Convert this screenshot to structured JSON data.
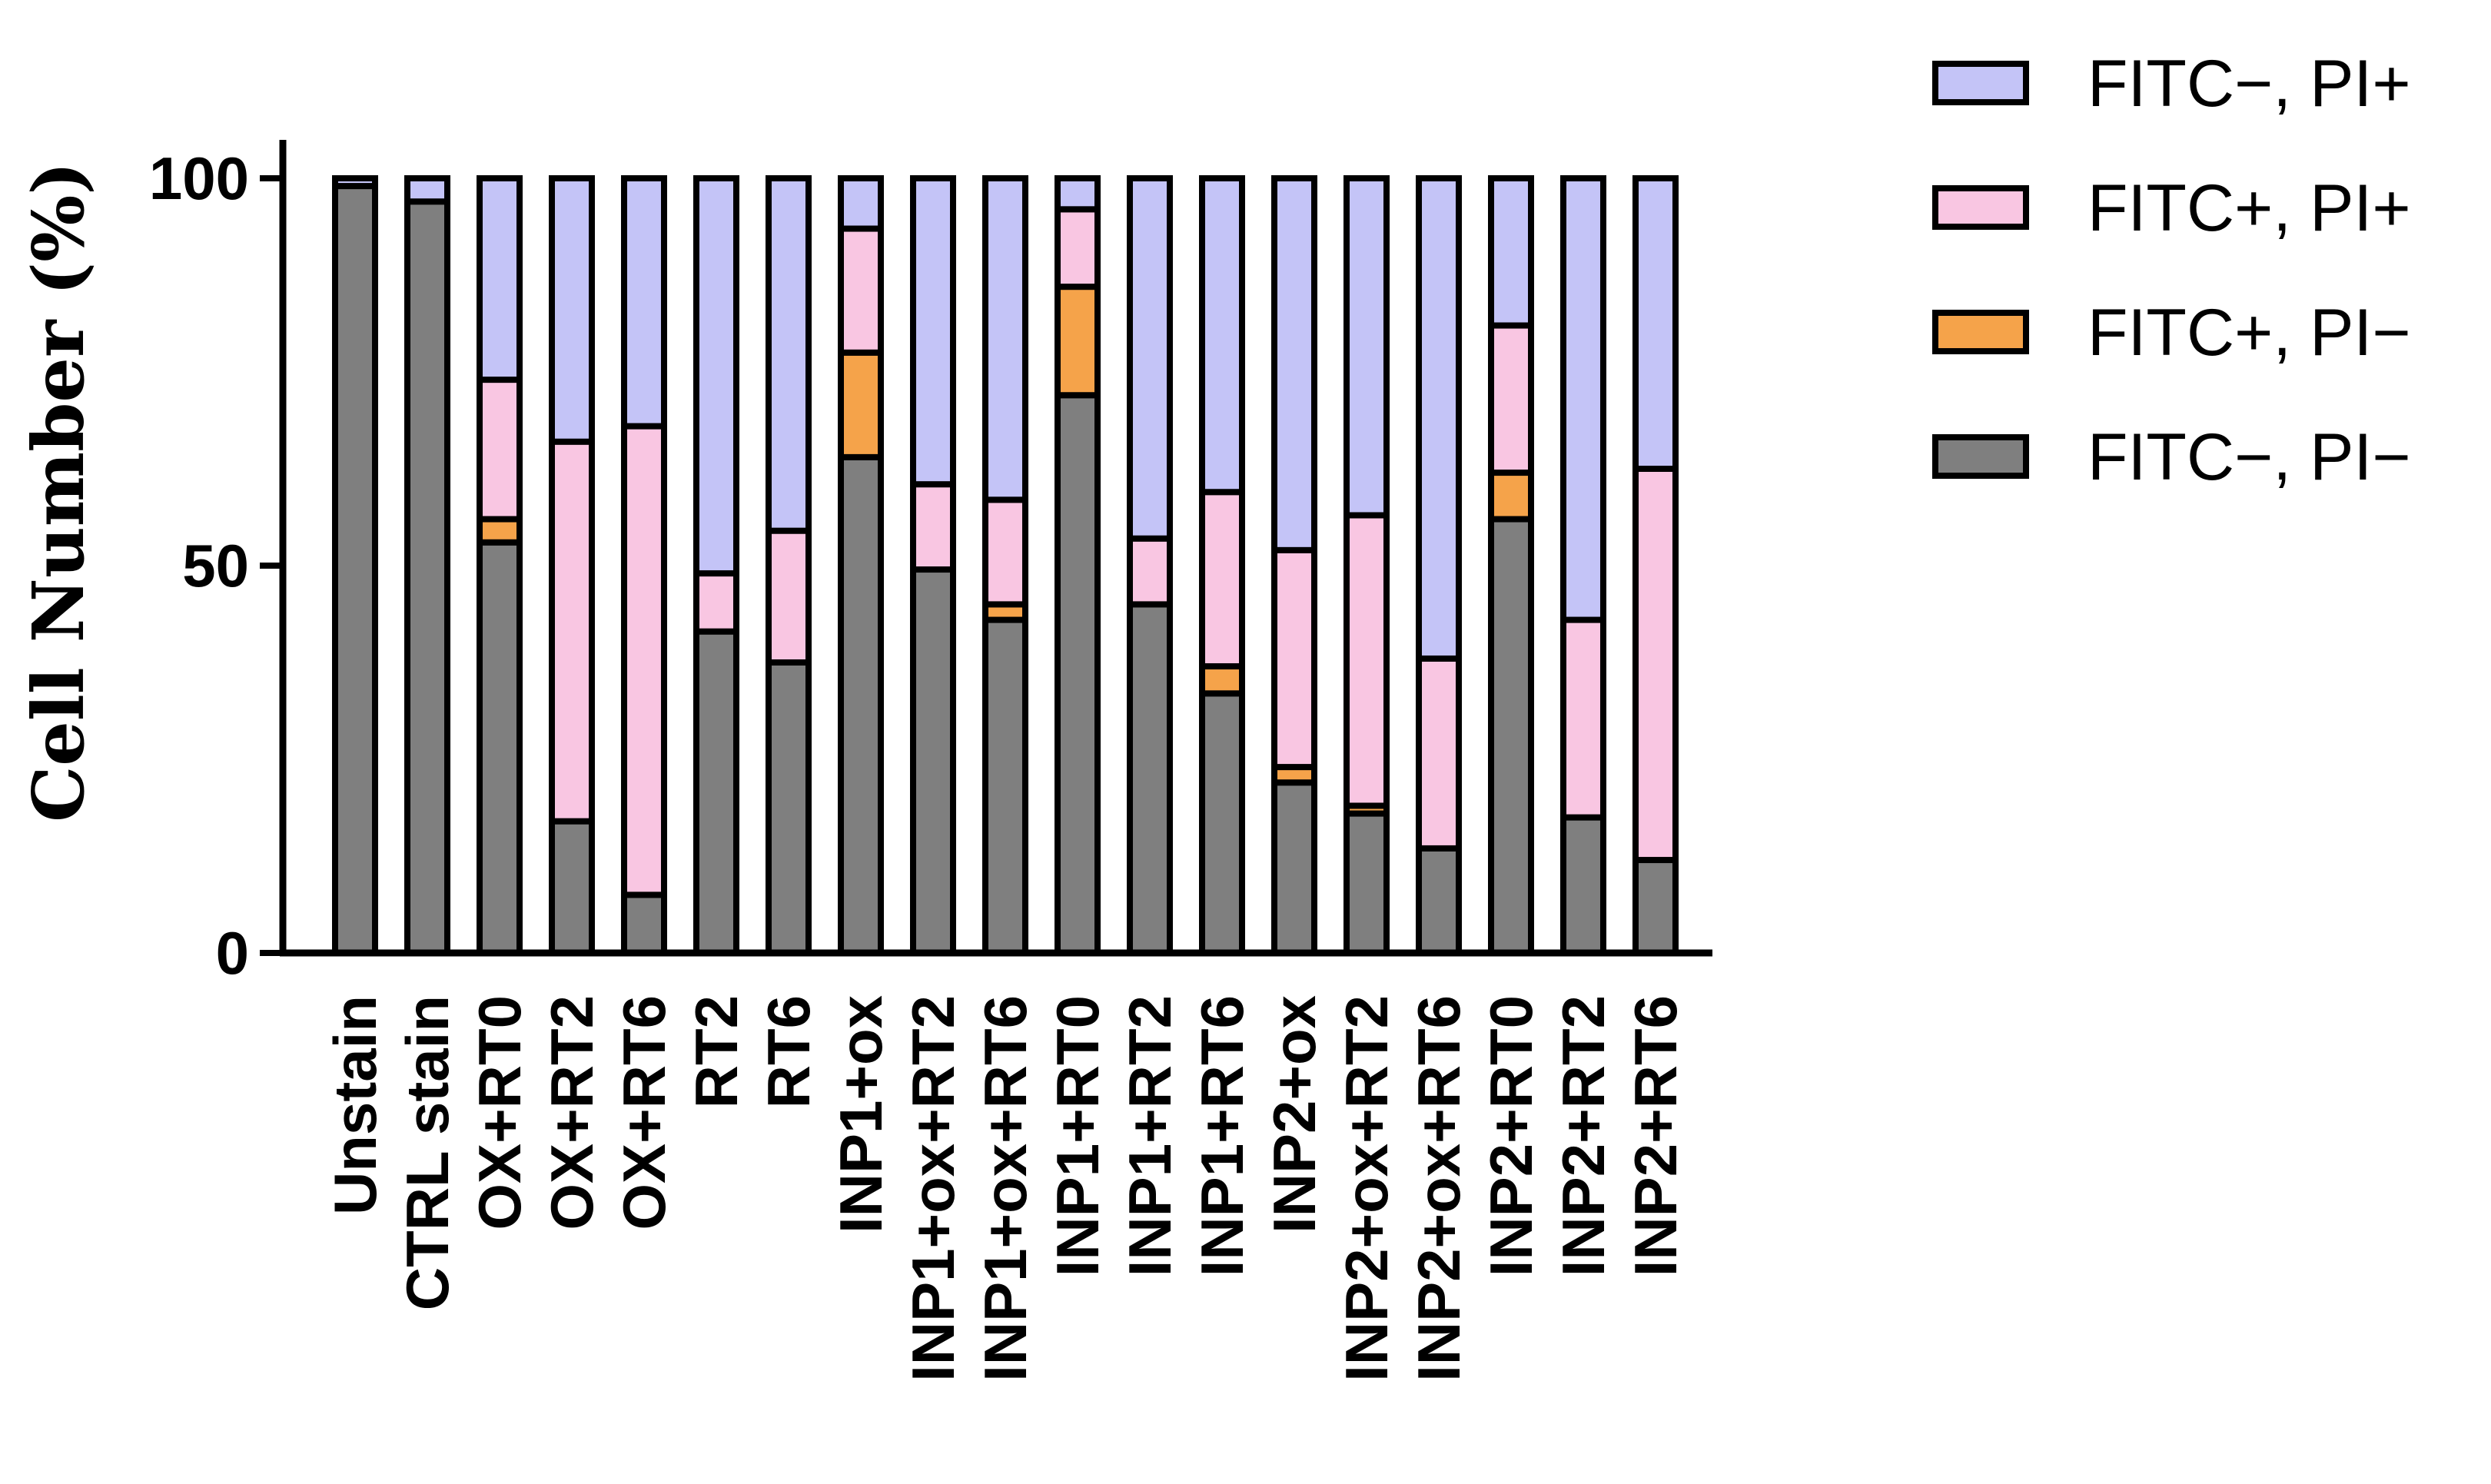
{
  "chart_data": {
    "type": "bar",
    "stacked": true,
    "title": "",
    "xlabel": "",
    "ylabel": "Cell Number (%)",
    "ylim": [
      0,
      100
    ],
    "yticks": [
      0,
      50,
      100
    ],
    "categories": [
      "Unstain",
      "CTRL stain",
      "OX+RT0",
      "OX+RT2",
      "OX+RT6",
      "RT2",
      "RT6",
      "INP1+ox",
      "INP1+ox+RT2",
      "INP1+ox+RT6",
      "INP1+RT0",
      "INP1+RT2",
      "INP1+RT6",
      "INP2+ox",
      "INP2+ox+RT2",
      "INP2+ox+RT6",
      "INP2+RT0",
      "INP2+RT2",
      "INP2+RT6"
    ],
    "series": [
      {
        "name": "FITC−, PI−",
        "color": "#7f7f7f",
        "values": [
          99,
          97,
          53,
          17,
          7.5,
          41.5,
          37.5,
          64,
          49.5,
          43,
          72,
          45,
          33.5,
          22,
          18,
          13.5,
          56,
          17.5,
          12
        ]
      },
      {
        "name": "FITC+, PI−",
        "color": "#f5a34a",
        "values": [
          0,
          0,
          3,
          0,
          0,
          0,
          0,
          13.5,
          0,
          2,
          14,
          0,
          3.5,
          2,
          1,
          0,
          6,
          0,
          0
        ]
      },
      {
        "name": "FITC+, PI+",
        "color": "#f9c6e2",
        "values": [
          0,
          0,
          18,
          49,
          60.5,
          7.5,
          17,
          16,
          11,
          13.5,
          10,
          8.5,
          22.5,
          28,
          37.5,
          24.5,
          19,
          25.5,
          50.5
        ]
      },
      {
        "name": "FITC−, PI+",
        "color": "#c4c4f7",
        "values": [
          1,
          3,
          26,
          34,
          32,
          51,
          45.5,
          6.5,
          39.5,
          41.5,
          4,
          46.5,
          40.5,
          48,
          43.5,
          62,
          19,
          57,
          37.5
        ]
      }
    ],
    "legend": {
      "position": "top-right",
      "entries": [
        "FITC−, PI+",
        "FITC+, PI+",
        "FITC+, PI−",
        "FITC−, PI−"
      ],
      "colors": [
        "#c4c4f7",
        "#f9c6e2",
        "#f5a34a",
        "#7f7f7f"
      ]
    }
  }
}
